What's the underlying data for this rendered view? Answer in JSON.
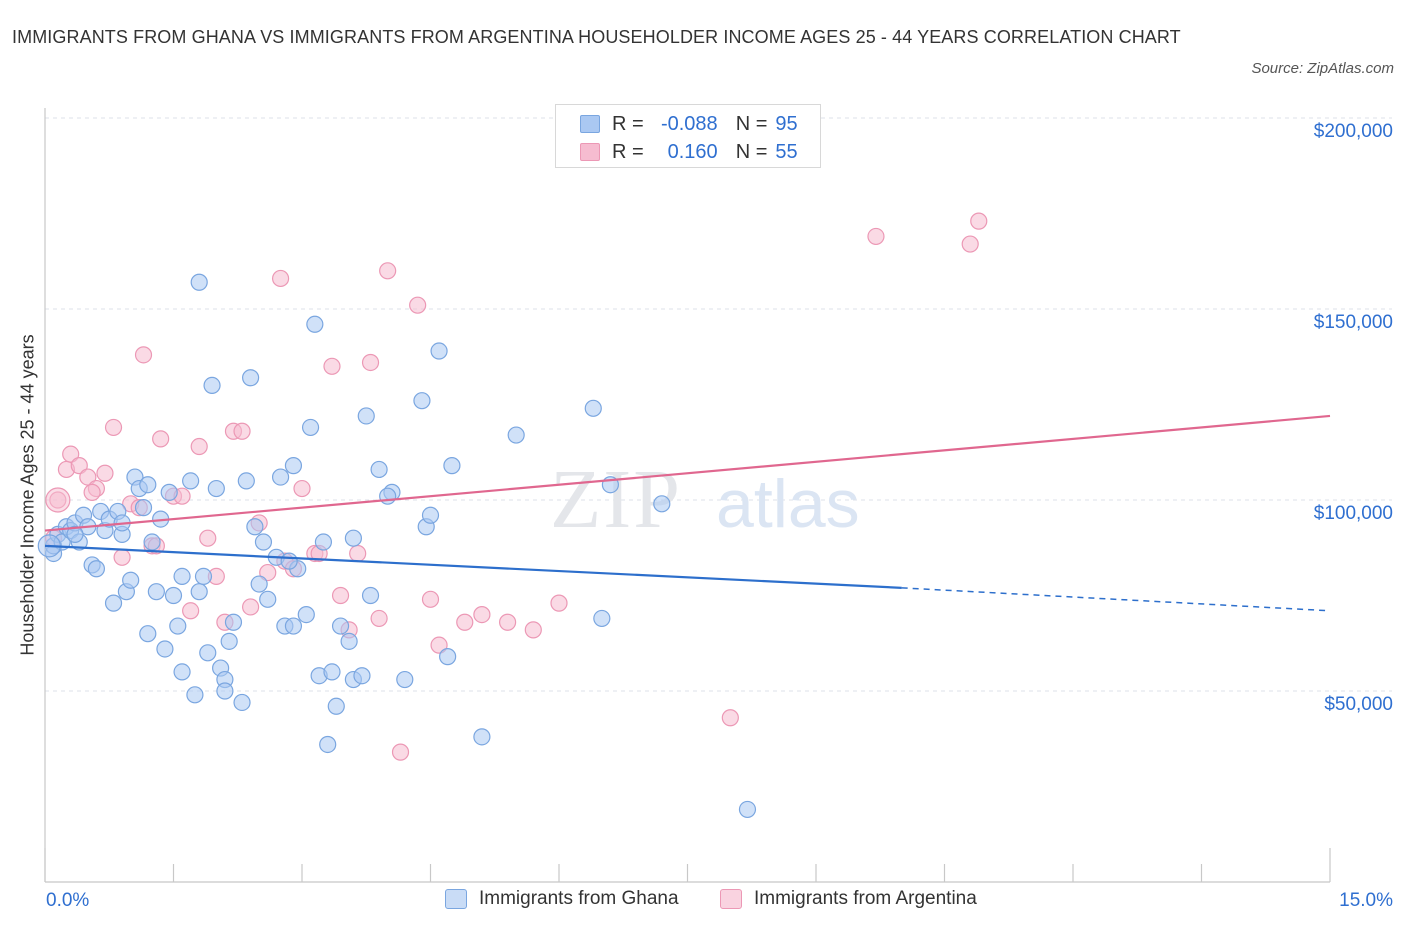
{
  "title": "IMMIGRANTS FROM GHANA VS IMMIGRANTS FROM ARGENTINA HOUSEHOLDER INCOME AGES 25 - 44 YEARS CORRELATION CHART",
  "source": "Source: ZipAtlas.com",
  "legend": {
    "r_label": "R =",
    "n_label": "N =",
    "rows": [
      {
        "series": "Immigrants from Ghana",
        "r": "-0.088",
        "n": "95"
      },
      {
        "series": "Immigrants from Argentina",
        "r": "0.160",
        "n": "55"
      }
    ]
  },
  "watermark": {
    "zip": "ZIP",
    "atlas": "atlas"
  },
  "colors": {
    "ghana_fill": "#aac8f2",
    "ghana_stroke": "#7aa6e0",
    "ghana_line": "#2d6fcc",
    "argentina_fill": "#f6bcd0",
    "argentina_stroke": "#ec98b5",
    "argentina_line": "#e0678f",
    "axis_text": "#2f6fd0",
    "grid": "#dde2ea"
  },
  "chart_data": {
    "type": "scatter",
    "xlabel": "",
    "ylabel": "Householder Income Ages 25 - 44 years",
    "x_tick_labels": [
      "0.0%",
      "15.0%"
    ],
    "y_tick_labels": [
      "$50,000",
      "$100,000",
      "$150,000",
      "$200,000"
    ],
    "xlim": [
      0,
      15
    ],
    "ylim": [
      0,
      200000
    ],
    "grid": "horizontal dashed",
    "legend_position": "top-center",
    "series": [
      {
        "name": "Immigrants from Ghana",
        "trend": {
          "x": [
            0.0,
            10.0
          ],
          "y": [
            88000,
            77000
          ],
          "dashed_extension_to": [
            15.0,
            71000
          ]
        },
        "points": [
          [
            0.1,
            86000
          ],
          [
            0.1,
            88000
          ],
          [
            0.15,
            91000
          ],
          [
            0.2,
            89000
          ],
          [
            0.25,
            93000
          ],
          [
            0.3,
            92000
          ],
          [
            0.35,
            94000
          ],
          [
            0.4,
            89000
          ],
          [
            0.45,
            96000
          ],
          [
            0.5,
            93000
          ],
          [
            0.55,
            83000
          ],
          [
            0.6,
            82000
          ],
          [
            0.65,
            97000
          ],
          [
            0.7,
            92000
          ],
          [
            0.75,
            95000
          ],
          [
            0.8,
            73000
          ],
          [
            0.85,
            97000
          ],
          [
            0.9,
            91000
          ],
          [
            0.95,
            76000
          ],
          [
            1.0,
            79000
          ],
          [
            1.05,
            106000
          ],
          [
            1.1,
            103000
          ],
          [
            1.15,
            98000
          ],
          [
            1.2,
            65000
          ],
          [
            1.25,
            89000
          ],
          [
            1.3,
            76000
          ],
          [
            1.35,
            95000
          ],
          [
            1.4,
            61000
          ],
          [
            1.45,
            102000
          ],
          [
            1.5,
            75000
          ],
          [
            1.55,
            67000
          ],
          [
            1.6,
            80000
          ],
          [
            1.7,
            105000
          ],
          [
            1.75,
            49000
          ],
          [
            1.8,
            76000
          ],
          [
            1.85,
            80000
          ],
          [
            1.9,
            60000
          ],
          [
            1.95,
            130000
          ],
          [
            2.0,
            103000
          ],
          [
            2.05,
            56000
          ],
          [
            2.1,
            53000
          ],
          [
            2.15,
            63000
          ],
          [
            2.2,
            68000
          ],
          [
            2.3,
            47000
          ],
          [
            2.35,
            105000
          ],
          [
            2.4,
            132000
          ],
          [
            2.45,
            93000
          ],
          [
            2.5,
            78000
          ],
          [
            2.55,
            89000
          ],
          [
            2.6,
            74000
          ],
          [
            2.7,
            85000
          ],
          [
            2.75,
            106000
          ],
          [
            2.8,
            67000
          ],
          [
            2.9,
            67000
          ],
          [
            2.95,
            82000
          ],
          [
            3.05,
            70000
          ],
          [
            3.1,
            119000
          ],
          [
            3.15,
            146000
          ],
          [
            3.2,
            54000
          ],
          [
            3.25,
            89000
          ],
          [
            3.3,
            36000
          ],
          [
            3.35,
            55000
          ],
          [
            3.4,
            46000
          ],
          [
            3.45,
            67000
          ],
          [
            3.55,
            63000
          ],
          [
            3.6,
            53000
          ],
          [
            3.7,
            54000
          ],
          [
            3.75,
            122000
          ],
          [
            3.8,
            75000
          ],
          [
            3.9,
            108000
          ],
          [
            4.05,
            102000
          ],
          [
            4.2,
            53000
          ],
          [
            4.4,
            126000
          ],
          [
            4.45,
            93000
          ],
          [
            4.5,
            96000
          ],
          [
            4.6,
            139000
          ],
          [
            4.7,
            59000
          ],
          [
            4.75,
            109000
          ],
          [
            5.1,
            38000
          ],
          [
            5.5,
            117000
          ],
          [
            6.4,
            124000
          ],
          [
            6.5,
            69000
          ],
          [
            6.6,
            104000
          ],
          [
            7.2,
            99000
          ],
          [
            8.2,
            19000
          ],
          [
            1.8,
            157000
          ],
          [
            2.9,
            109000
          ],
          [
            4.0,
            101000
          ],
          [
            1.2,
            104000
          ],
          [
            0.9,
            94000
          ],
          [
            2.1,
            50000
          ],
          [
            1.6,
            55000
          ],
          [
            3.6,
            90000
          ],
          [
            0.35,
            91000
          ],
          [
            2.85,
            84000
          ]
        ]
      },
      {
        "name": "Immigrants from Argentina",
        "trend": {
          "x": [
            0.0,
            15.0
          ],
          "y": [
            92000,
            122000
          ]
        },
        "points": [
          [
            0.1,
            90000
          ],
          [
            0.15,
            100000
          ],
          [
            0.25,
            108000
          ],
          [
            0.3,
            112000
          ],
          [
            0.4,
            109000
          ],
          [
            0.5,
            106000
          ],
          [
            0.6,
            103000
          ],
          [
            0.7,
            107000
          ],
          [
            0.8,
            119000
          ],
          [
            0.9,
            85000
          ],
          [
            1.0,
            99000
          ],
          [
            1.1,
            98000
          ],
          [
            1.15,
            138000
          ],
          [
            1.25,
            88000
          ],
          [
            1.35,
            116000
          ],
          [
            1.5,
            101000
          ],
          [
            1.6,
            101000
          ],
          [
            1.7,
            71000
          ],
          [
            1.8,
            114000
          ],
          [
            1.9,
            90000
          ],
          [
            2.0,
            80000
          ],
          [
            2.1,
            68000
          ],
          [
            2.2,
            118000
          ],
          [
            2.3,
            118000
          ],
          [
            2.4,
            72000
          ],
          [
            2.5,
            94000
          ],
          [
            2.6,
            81000
          ],
          [
            2.75,
            158000
          ],
          [
            2.8,
            84000
          ],
          [
            2.9,
            82000
          ],
          [
            3.0,
            103000
          ],
          [
            3.15,
            86000
          ],
          [
            3.2,
            86000
          ],
          [
            3.35,
            135000
          ],
          [
            3.45,
            75000
          ],
          [
            3.55,
            66000
          ],
          [
            3.65,
            86000
          ],
          [
            3.8,
            136000
          ],
          [
            3.9,
            69000
          ],
          [
            4.0,
            160000
          ],
          [
            4.15,
            34000
          ],
          [
            4.35,
            151000
          ],
          [
            4.5,
            74000
          ],
          [
            4.6,
            62000
          ],
          [
            4.9,
            68000
          ],
          [
            5.1,
            70000
          ],
          [
            5.4,
            68000
          ],
          [
            5.7,
            66000
          ],
          [
            6.0,
            73000
          ],
          [
            8.0,
            43000
          ],
          [
            9.7,
            169000
          ],
          [
            10.8,
            167000
          ],
          [
            10.9,
            173000
          ],
          [
            0.55,
            102000
          ],
          [
            1.3,
            88000
          ]
        ]
      }
    ]
  }
}
